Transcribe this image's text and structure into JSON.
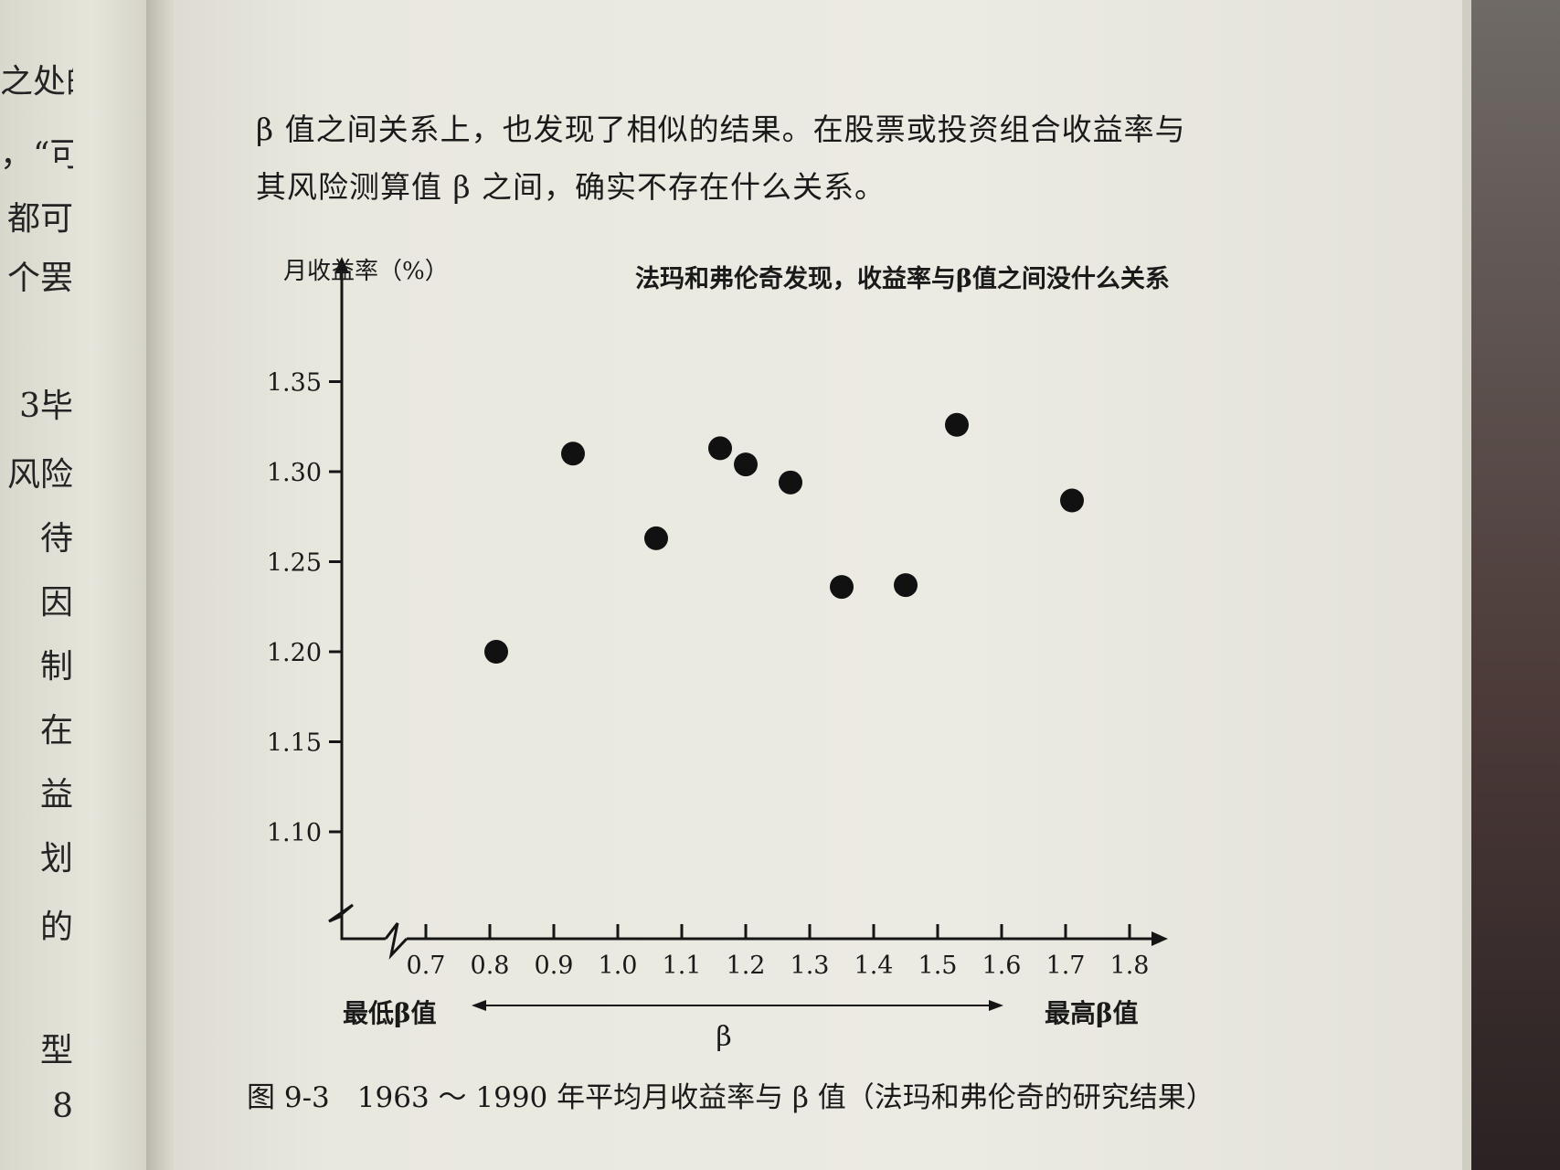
{
  "left_page": {
    "lines": [
      "之处的",
      "，“可",
      "都可",
      "个罢",
      "3毕",
      "风险",
      "待",
      "因",
      "制",
      "在",
      "益",
      "划",
      "的",
      "型",
      "8"
    ]
  },
  "body": {
    "line1": "β 值之间关系上，也发现了相似的结果。在股票或投资组合收益率与",
    "line2": "其风险测算值 β 之间，确实不存在什么关系。"
  },
  "caption": {
    "number": "图 9-3",
    "text": "1963 ～ 1990 年平均月收益率与 β 值（法玛和弗伦奇的研究结果）"
  },
  "chart_data": {
    "type": "scatter",
    "title": "法玛和弗伦奇发现，收益率与β值之间没什么关系",
    "xlabel": "β",
    "ylabel": "月收益率（%）",
    "x_left_label": "最低β值",
    "x_right_label": "最高β值",
    "xlim": [
      0.7,
      1.8
    ],
    "ylim": [
      1.1,
      1.35
    ],
    "x_ticks": [
      "0.7",
      "0.8",
      "0.9",
      "1.0",
      "1.1",
      "1.2",
      "1.3",
      "1.4",
      "1.5",
      "1.6",
      "1.7",
      "1.8"
    ],
    "y_ticks": [
      "1.10",
      "1.15",
      "1.20",
      "1.25",
      "1.30",
      "1.35"
    ],
    "axis_break": true,
    "grid": false,
    "points": [
      {
        "x": 0.81,
        "y": 1.2
      },
      {
        "x": 0.93,
        "y": 1.31
      },
      {
        "x": 1.06,
        "y": 1.263
      },
      {
        "x": 1.16,
        "y": 1.313
      },
      {
        "x": 1.2,
        "y": 1.304
      },
      {
        "x": 1.27,
        "y": 1.294
      },
      {
        "x": 1.35,
        "y": 1.236
      },
      {
        "x": 1.45,
        "y": 1.237
      },
      {
        "x": 1.53,
        "y": 1.326
      },
      {
        "x": 1.71,
        "y": 1.284
      }
    ]
  }
}
